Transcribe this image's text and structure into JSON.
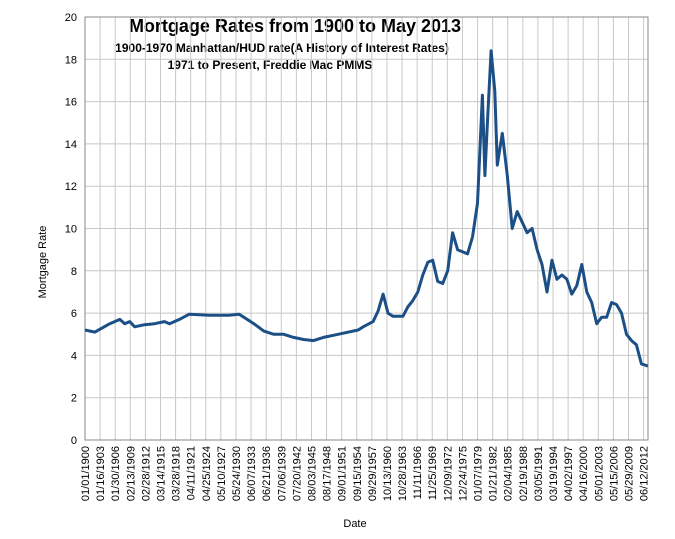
{
  "chart_data": {
    "type": "line",
    "title": "Mortgage Rates from 1900 to May 2013",
    "subtitle": [
      "1900-1970 Manhattan/HUD rate(A History of Interest Rates)",
      "1971 to Present, Freddie Mac PMMS"
    ],
    "x_label": "Date",
    "y_label": "Mortgage Rate",
    "xlim": [
      "1900-01",
      "2013-05"
    ],
    "xticks": [
      "01/01/1900",
      "01/16/1903",
      "01/30/1906",
      "02/13/1909",
      "02/28/1912",
      "03/14/1915",
      "03/28/1918",
      "04/11/1921",
      "04/25/1924",
      "05/10/1927",
      "05/24/1930",
      "06/07/1933",
      "06/21/1936",
      "07/06/1939",
      "07/20/1942",
      "08/03/1945",
      "08/17/1948",
      "09/01/1951",
      "09/15/1954",
      "09/29/1957",
      "10/13/1960",
      "10/28/1963",
      "11/11/1966",
      "11/25/1969",
      "12/09/1972",
      "12/24/1975",
      "01/07/1979",
      "01/21/1982",
      "02/04/1985",
      "02/19/1988",
      "03/05/1991",
      "03/19/1994",
      "04/02/1997",
      "04/16/2000",
      "05/01/2003",
      "05/15/2006",
      "05/29/2009",
      "06/12/2012"
    ],
    "ylim": [
      0,
      20
    ],
    "yticks": [
      0,
      2,
      4,
      6,
      8,
      10,
      12,
      14,
      16,
      18,
      20
    ],
    "grid": true,
    "series": [
      {
        "name": "Mortgage Rate",
        "color": "#1b4f86",
        "x": [
          "1900-01",
          "1902-01",
          "1905-01",
          "1907-01",
          "1908-01",
          "1909-01",
          "1910-01",
          "1912-01",
          "1914-01",
          "1916-01",
          "1917-01",
          "1919-01",
          "1921-01",
          "1925-01",
          "1929-01",
          "1931-01",
          "1932-01",
          "1934-01",
          "1936-01",
          "1938-01",
          "1940-01",
          "1942-01",
          "1944-01",
          "1946-01",
          "1948-01",
          "1950-01",
          "1952-01",
          "1955-01",
          "1956-01",
          "1958-01",
          "1959-01",
          "1960-01",
          "1961-01",
          "1962-01",
          "1964-01",
          "1965-01",
          "1966-01",
          "1967-01",
          "1968-01",
          "1969-01",
          "1970-01",
          "1971-01",
          "1972-01",
          "1973-01",
          "1974-01",
          "1975-01",
          "1976-01",
          "1977-01",
          "1978-01",
          "1979-01",
          "1980-01",
          "1980-07",
          "1981-01",
          "1981-10",
          "1982-07",
          "1983-01",
          "1984-01",
          "1985-01",
          "1986-01",
          "1987-01",
          "1988-01",
          "1989-01",
          "1990-01",
          "1991-01",
          "1992-01",
          "1993-01",
          "1994-01",
          "1995-01",
          "1996-01",
          "1997-01",
          "1998-01",
          "1999-01",
          "2000-01",
          "2001-01",
          "2002-01",
          "2003-01",
          "2004-01",
          "2005-01",
          "2006-01",
          "2007-01",
          "2008-01",
          "2009-01",
          "2010-01",
          "2011-01",
          "2012-01",
          "2013-05"
        ],
        "values": [
          5.2,
          5.1,
          5.5,
          5.7,
          5.5,
          5.6,
          5.35,
          5.45,
          5.5,
          5.6,
          5.5,
          5.7,
          5.95,
          5.9,
          5.9,
          5.95,
          5.8,
          5.5,
          5.15,
          5.0,
          5.0,
          4.85,
          4.75,
          4.7,
          4.85,
          4.95,
          5.05,
          5.2,
          5.35,
          5.6,
          6.1,
          6.9,
          6.0,
          5.85,
          5.85,
          6.3,
          6.6,
          7.0,
          7.8,
          8.4,
          8.5,
          7.5,
          7.4,
          8.0,
          9.8,
          9.0,
          8.9,
          8.8,
          9.6,
          11.2,
          16.3,
          12.5,
          15.0,
          18.4,
          16.5,
          13.0,
          14.5,
          12.5,
          10.0,
          10.8,
          10.3,
          9.8,
          10.0,
          9.0,
          8.3,
          7.0,
          8.5,
          7.6,
          7.8,
          7.6,
          6.9,
          7.3,
          8.3,
          7.0,
          6.5,
          5.5,
          5.8,
          5.8,
          6.5,
          6.4,
          6.0,
          5.0,
          4.7,
          4.5,
          3.6,
          3.5
        ]
      }
    ]
  }
}
